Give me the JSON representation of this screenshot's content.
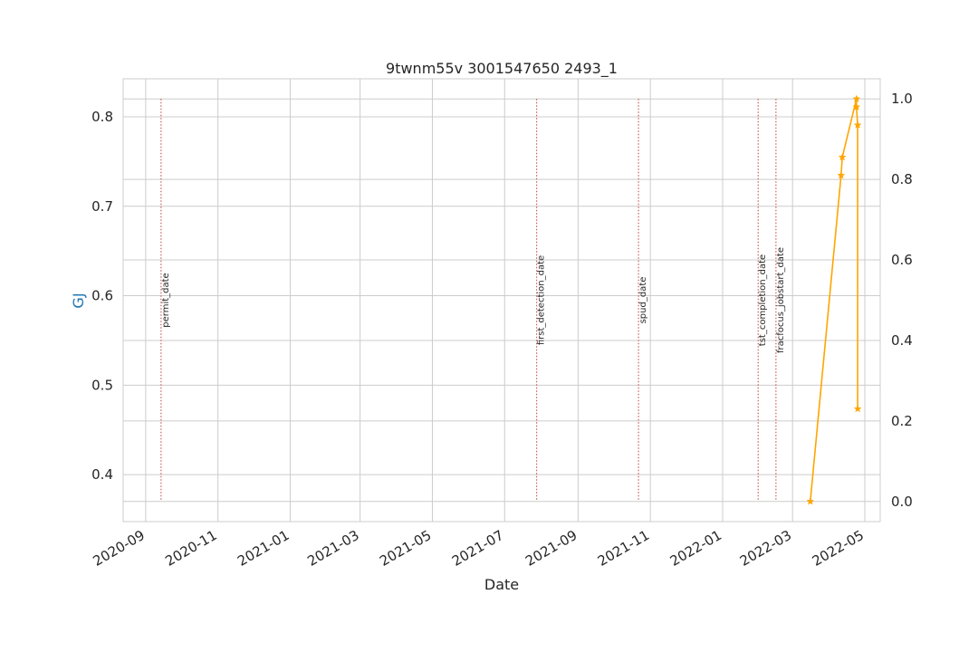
{
  "chart_data": {
    "type": "line",
    "title": "9twnm55v 3001547650 2493_1",
    "xlabel": "Date",
    "ylabel_left": "GJ",
    "x_ticks": [
      "2020-09",
      "2020-11",
      "2021-01",
      "2021-03",
      "2021-05",
      "2021-07",
      "2021-09",
      "2021-11",
      "2022-01",
      "2022-03",
      "2022-05"
    ],
    "x_range": [
      "2020-08-13",
      "2022-05-14"
    ],
    "left_y_ticks": [
      "0.4",
      "0.5",
      "0.6",
      "0.7",
      "0.8"
    ],
    "left_ylim": [
      0.3475,
      0.8425
    ],
    "right_y_ticks": [
      "0.0",
      "0.2",
      "0.4",
      "0.6",
      "0.8",
      "1.0"
    ],
    "right_ylim": [
      -0.05,
      1.05
    ],
    "grid": true,
    "event_lines": [
      {
        "label": "permit_date",
        "date": "2020-09-14"
      },
      {
        "label": "first_detection_date",
        "date": "2021-07-28"
      },
      {
        "label": "spud_date",
        "date": "2021-10-22"
      },
      {
        "label": "tst_completion_date",
        "date": "2022-01-31"
      },
      {
        "label": "fracfocus_jobstart_date",
        "date": "2022-02-15"
      }
    ],
    "series": [
      {
        "axis": "right",
        "color": "#ffa500",
        "marker": "star",
        "points": [
          {
            "x": "2022-03-16",
            "y": 0.0
          },
          {
            "x": "2022-04-11",
            "y": 0.81
          },
          {
            "x": "2022-04-12",
            "y": 0.855
          },
          {
            "x": "2022-04-24",
            "y": 1.0
          },
          {
            "x": "2022-04-24",
            "y": 0.98
          },
          {
            "x": "2022-04-25",
            "y": 0.935
          },
          {
            "x": "2022-04-25",
            "y": 0.23
          }
        ]
      }
    ],
    "colors": {
      "ylabel": "#1f77b4",
      "event_line": "#cd5c5c",
      "grid": "#cccccc",
      "spine": "#cccccc"
    }
  }
}
